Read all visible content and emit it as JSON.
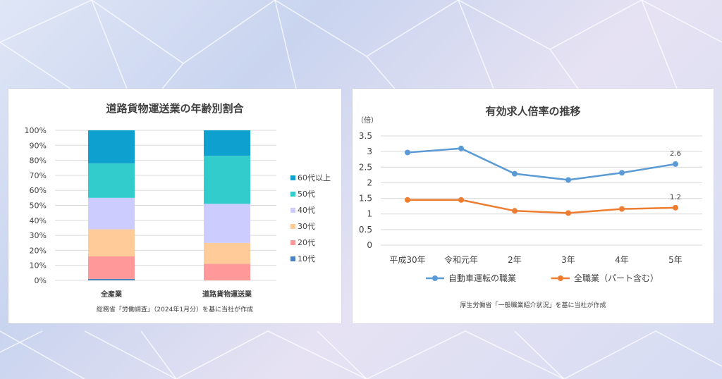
{
  "colors": {
    "age_60plus": "#0ea0cf",
    "age_50s": "#33cccc",
    "age_40s": "#ccccff",
    "age_30s": "#ffcc99",
    "age_20s": "#ff9999",
    "age_10s": "#4f81bd",
    "line_auto": "#5b9bd5",
    "line_all": "#ed7d31",
    "grid": "#d9d9d9"
  },
  "left_chart": {
    "title": "道路貨物運送業の年齢別割合",
    "source": "総務省「労働調査」（2024年1月分）を基に当社が作成"
  },
  "right_chart": {
    "title": "有効求人倍率の推移",
    "y_unit": "（倍）",
    "source": "厚生労働省「一般職業紹介状況」を基に当社が作成"
  },
  "chart_data": [
    {
      "type": "bar",
      "stacked": true,
      "title": "道路貨物運送業の年齢別割合",
      "categories": [
        "全産業",
        "道路貨物運送業"
      ],
      "y_ticks": [
        "0%",
        "10%",
        "20%",
        "30%",
        "40%",
        "50%",
        "60%",
        "70%",
        "80%",
        "90%",
        "100%"
      ],
      "ylim": [
        0,
        100
      ],
      "legend_placement": "right",
      "grid": true,
      "series": [
        {
          "name": "10代",
          "values": [
            1,
            0
          ]
        },
        {
          "name": "20代",
          "values": [
            15,
            11
          ]
        },
        {
          "name": "30代",
          "values": [
            18,
            14
          ]
        },
        {
          "name": "40代",
          "values": [
            21,
            26
          ]
        },
        {
          "name": "50代",
          "values": [
            23,
            32
          ]
        },
        {
          "name": "60代以上",
          "values": [
            22,
            17
          ]
        }
      ]
    },
    {
      "type": "line",
      "title": "有効求人倍率の推移",
      "ylabel": "（倍）",
      "categories": [
        "平成30年",
        "令和元年",
        "2年",
        "3年",
        "4年",
        "5年"
      ],
      "y_ticks": [
        "0",
        "0.5",
        "1",
        "1.5",
        "2",
        "2.5",
        "3",
        "3.5"
      ],
      "ylim": [
        0,
        3.5
      ],
      "legend_placement": "bottom",
      "grid": true,
      "series": [
        {
          "name": "自動車運転の職業",
          "values": [
            2.97,
            3.1,
            2.29,
            2.09,
            2.32,
            2.6
          ],
          "end_label": "2.6"
        },
        {
          "name": "全職業（パート含む）",
          "values": [
            1.45,
            1.45,
            1.1,
            1.03,
            1.16,
            1.2
          ],
          "end_label": "1.2"
        }
      ]
    }
  ]
}
